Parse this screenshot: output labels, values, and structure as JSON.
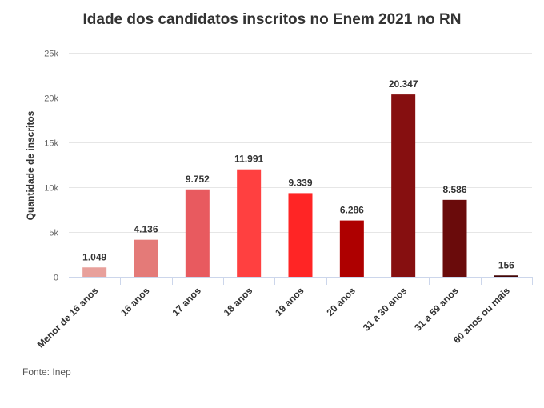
{
  "chart_data": {
    "type": "bar",
    "title": "Idade dos candidatos inscritos no Enem 2021 no RN",
    "ylabel": "Quantidade de inscritos",
    "xlabel": "",
    "ylim": [
      0,
      25000
    ],
    "yticks": [
      0,
      5000,
      10000,
      15000,
      20000,
      25000
    ],
    "ytick_labels": [
      "0",
      "5k",
      "10k",
      "15k",
      "20k",
      "25k"
    ],
    "grid": true,
    "categories": [
      "Menor de 16 anos",
      "16 anos",
      "17 anos",
      "18 anos",
      "19 anos",
      "20 anos",
      "31 a 30 anos",
      "31 a 59 anos",
      "60 anos ou mais"
    ],
    "values": [
      1049,
      4136,
      9752,
      11991,
      9339,
      6286,
      20347,
      8586,
      156
    ],
    "value_labels": [
      "1.049",
      "4.136",
      "9.752",
      "11.991",
      "9.339",
      "6.286",
      "20.347",
      "8.586",
      "156"
    ],
    "colors": [
      "#e8a09b",
      "#e47a78",
      "#e85a5f",
      "#ff4040",
      "#ff2525",
      "#ae0000",
      "#860f10",
      "#6a0b0b",
      "#420505"
    ]
  },
  "source": "Fonte: Inep"
}
